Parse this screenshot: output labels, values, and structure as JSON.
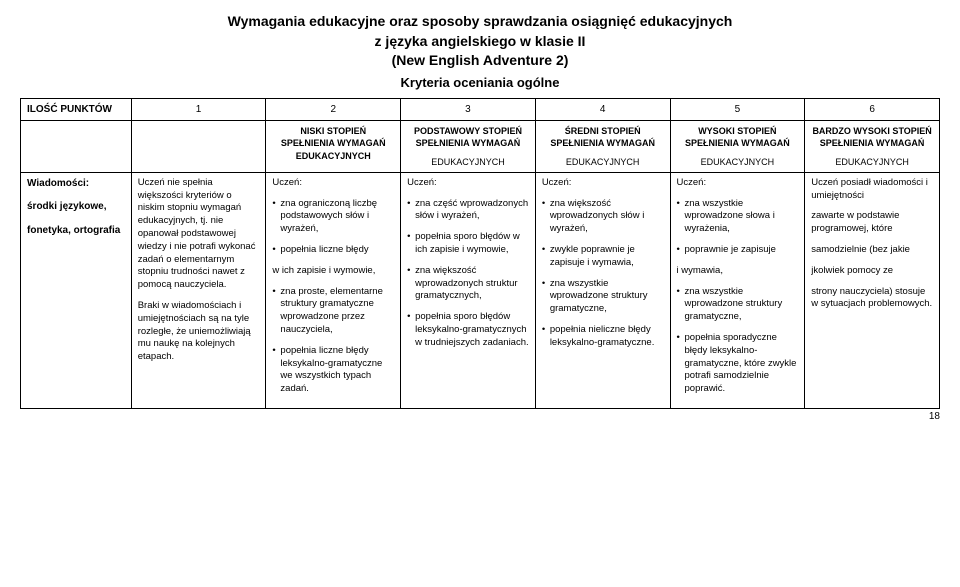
{
  "title_line1": "Wymagania edukacyjne oraz sposoby sprawdzania osiągnięć edukacyjnych",
  "title_line2": "z języka angielskiego w klasie II",
  "title_line3": "(New English Adventure 2)",
  "subtitle": "Kryteria oceniania ogólne",
  "header_row_label": "ILOŚĆ PUNKTÓW",
  "cols": [
    "1",
    "2",
    "3",
    "4",
    "5",
    "6"
  ],
  "levels": [
    {
      "main": "NISKI STOPIEŃ SPEŁNIENIA WYMAGAŃ EDUKACYJNYCH",
      "sub": ""
    },
    {
      "main": "PODSTAWOWY STOPIEŃ SPEŁNIENIA WYMAGAŃ",
      "sub": "EDUKACYJNYCH"
    },
    {
      "main": "ŚREDNI STOPIEŃ SPEŁNIENIA WYMAGAŃ",
      "sub": "EDUKACYJNYCH"
    },
    {
      "main": "WYSOKI STOPIEŃ SPEŁNIENIA WYMAGAŃ",
      "sub": "EDUKACYJNYCH"
    },
    {
      "main": "BARDZO WYSOKI STOPIEŃ SPEŁNIENIA WYMAGAŃ",
      "sub": "EDUKACYJNYCH"
    }
  ],
  "row": {
    "label_bold1": "Wiadomości:",
    "label_line2": "środki językowe,",
    "label_line3": "fonetyka, ortografia",
    "c1": {
      "p1": "Uczeń nie spełnia większości kryteriów o niskim stopniu wymagań edukacyjnych, tj. nie opanował podstawowej wiedzy i nie potrafi wykonać zadań o elementarnym stopniu trudności nawet z pomocą nauczyciela.",
      "p2": "Braki w wiadomościach i umiejętnościach są na tyle rozległe, że uniemożliwiają mu naukę na kolejnych etapach."
    },
    "c2": {
      "lead": "Uczeń:",
      "b1": "zna ograniczoną liczbę podstawowych słów i wyrażeń,",
      "b2": "popełnia liczne błędy",
      "p1": "w ich zapisie i wymowie,",
      "b3": "zna proste, elementarne struktury gramatyczne wprowadzone przez nauczyciela,",
      "b4": "popełnia liczne błędy leksykalno-gramatyczne we wszystkich typach zadań."
    },
    "c3": {
      "lead": "Uczeń:",
      "b1": "zna część wprowadzonych słów i wyrażeń,",
      "b2": "popełnia sporo błędów w ich zapisie i wymowie,",
      "b3": "zna większość wprowadzonych struktur gramatycznych,",
      "b4": "popełnia sporo błędów leksykalno-gramatycznych w trudniejszych zadaniach."
    },
    "c4": {
      "lead": "Uczeń:",
      "b1": "zna większość wprowadzonych słów i wyrażeń,",
      "b2": "zwykle poprawnie je zapisuje i wymawia,",
      "b3": "zna wszystkie wprowadzone struktury gramatyczne,",
      "b4": "popełnia nieliczne błędy leksykalno-gramatyczne."
    },
    "c5": {
      "lead": "Uczeń:",
      "b1": "zna wszystkie wprowadzone słowa i wyrażenia,",
      "b2": "poprawnie je zapisuje",
      "p1": "i wymawia,",
      "b3": "zna wszystkie wprowadzone struktury gramatyczne,",
      "b4": "popełnia sporadyczne błędy leksykalno-gramatyczne, które zwykle potrafi samodzielnie poprawić."
    },
    "c6": {
      "p1": "Uczeń posiadł wiadomości i umiejętności",
      "p2": "zawarte w podstawie programowej, które",
      "p3": "samodzielnie (bez jakie",
      "p4": "jkolwiek pomocy ze",
      "p5": "strony nauczyciela) stosuje w sytuacjach problemowych."
    }
  },
  "page_number": "18"
}
